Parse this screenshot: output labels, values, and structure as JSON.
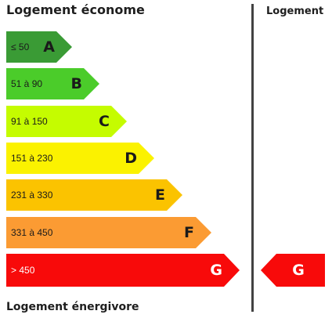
{
  "header": {
    "title": "Logement économe",
    "column_title": "Logement"
  },
  "footer": {
    "label": "Logement énergivore"
  },
  "classes": [
    {
      "letter": "A",
      "range": "≤ 50",
      "color": "#3a9b35"
    },
    {
      "letter": "B",
      "range": "51 à 90",
      "color": "#4bcc2a"
    },
    {
      "letter": "C",
      "range": "91 à 150",
      "color": "#c5fc00"
    },
    {
      "letter": "D",
      "range": "151 à 230",
      "color": "#fbf200"
    },
    {
      "letter": "E",
      "range": "231 à 330",
      "color": "#fbc300"
    },
    {
      "letter": "F",
      "range": "331 à 450",
      "color": "#fb9b33"
    },
    {
      "letter": "G",
      "range": "> 450",
      "color": "#f80a0a"
    }
  ],
  "indicator": {
    "letter": "G",
    "color": "#f80a0a"
  }
}
